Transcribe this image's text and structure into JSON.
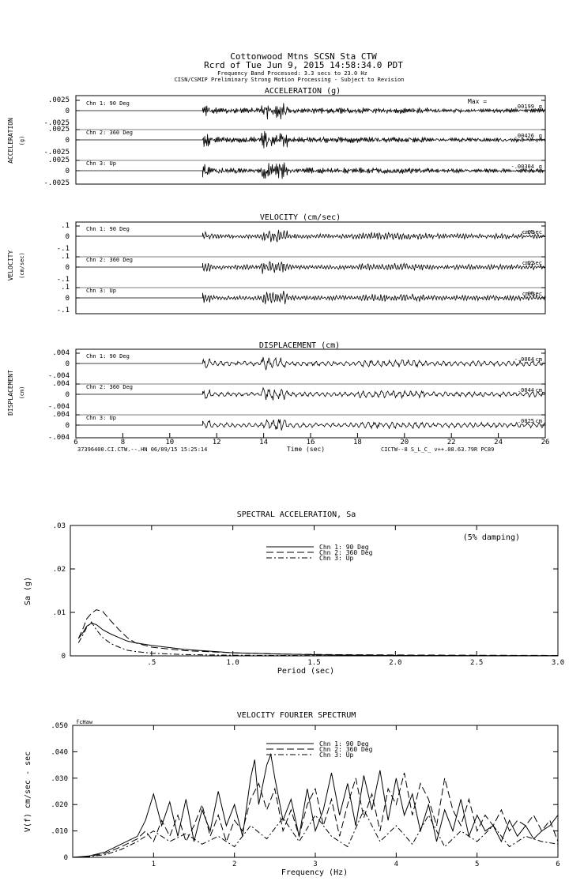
{
  "header": {
    "line1": "Cottonwood Mtns    SCSN Sta CTW",
    "line2": "Rcrd of Tue Jun  9, 2015 14:58:34.0 PDT",
    "line3": "Frequency Band Processed: 3.3 secs to 23.0 Hz",
    "line4": "CISN/CSMIP Preliminary Strong Motion Processing - Subject to Revision"
  },
  "colors": {
    "ink": "#000000",
    "paper": "#ffffff"
  },
  "chart_data": [
    {
      "type": "line",
      "title": "ACCELERATION (g)",
      "ylabel": "ACCELERATION",
      "yunit": "(g)",
      "max_prefix": "Max =",
      "ylim": [
        -0.0025,
        0.0025
      ],
      "yticks": [
        ".0025",
        "0",
        "-.0025"
      ],
      "series": [
        {
          "name": "Chn 1: 90 Deg",
          "max": ".00199",
          "unit": "g"
        },
        {
          "name": "Chn 2: 360 Deg",
          "max": ".00426",
          "unit": "g"
        },
        {
          "name": "Chn 3: Up",
          "max": "-.00304",
          "unit": "g"
        }
      ]
    },
    {
      "type": "line",
      "title": "VELOCITY (cm/sec)",
      "ylabel": "VELOCITY",
      "yunit": "(cm/sec)",
      "ylim": [
        -0.1,
        0.1
      ],
      "yticks": [
        ".1",
        "0",
        "-.1"
      ],
      "series": [
        {
          "name": "Chn 1: 90 Deg",
          "max": "-.08",
          "unit": "cm/sec"
        },
        {
          "name": "Chn 2: 360 Deg",
          "max": ".12",
          "unit": "cm/sec"
        },
        {
          "name": "Chn 3: Up",
          "max": ".06",
          "unit": "cm/sec"
        }
      ]
    },
    {
      "type": "line",
      "title": "DISPLACEMENT (cm)",
      "ylabel": "DISPLACEMENT",
      "yunit": "(cm)",
      "ylim": [
        -0.004,
        0.004
      ],
      "yticks": [
        ".004",
        "0",
        "-.004"
      ],
      "xlabel": "Time (sec)",
      "xlim": [
        6,
        26
      ],
      "xticks": [
        "6",
        "8",
        "10",
        "12",
        "14",
        "16",
        "18",
        "20",
        "22",
        "24",
        "26"
      ],
      "footer_left": "37396400.CI.CTW.--.HN 06/09/15 15:25:14",
      "footer_right": "CICTW--8  S_L_C_  v++.08.63.79R PC89",
      "series": [
        {
          "name": "Chn 1: 90 Deg",
          "max": "-.0064",
          "unit": "cm"
        },
        {
          "name": "Chn 2: 360 Deg",
          "max": ".0044",
          "unit": "cm"
        },
        {
          "name": "Chn 3: Up",
          "max": ".0025",
          "unit": "cm"
        }
      ]
    },
    {
      "type": "line",
      "title": "SPECTRAL ACCELERATION, Sa",
      "ylabel": "Sa (g)",
      "xlabel": "Period (sec)",
      "note": "(5% damping)",
      "xlim": [
        0,
        3
      ],
      "ylim": [
        0,
        0.03
      ],
      "xticks": [
        {
          "v": 0.5,
          "label": ".5"
        },
        {
          "v": 1.0,
          "label": "1.0"
        },
        {
          "v": 1.5,
          "label": "1.5"
        },
        {
          "v": 2.0,
          "label": "2.0"
        },
        {
          "v": 2.5,
          "label": "2.5"
        },
        {
          "v": 3.0,
          "label": "3.0"
        }
      ],
      "yticks": [
        {
          "v": 0,
          "label": "0"
        },
        {
          "v": 0.01,
          "label": ".01"
        },
        {
          "v": 0.02,
          "label": ".02"
        },
        {
          "v": 0.03,
          "label": ".03"
        }
      ],
      "series": [
        {
          "name": "Chn 1: 90 Deg",
          "dash": "",
          "x": [
            0.05,
            0.08,
            0.1,
            0.13,
            0.16,
            0.2,
            0.25,
            0.3,
            0.35,
            0.4,
            0.5,
            0.7,
            1.0,
            1.3,
            1.6,
            2.0,
            3.0
          ],
          "y": [
            0.004,
            0.0055,
            0.0068,
            0.0075,
            0.0072,
            0.006,
            0.005,
            0.0042,
            0.0034,
            0.003,
            0.0024,
            0.0015,
            0.0007,
            0.0004,
            0.0002,
            0.0001,
            4e-05
          ]
        },
        {
          "name": "Chn 2: 360 Deg",
          "dash": "9,4",
          "x": [
            0.05,
            0.08,
            0.1,
            0.13,
            0.16,
            0.2,
            0.25,
            0.3,
            0.35,
            0.4,
            0.5,
            0.7,
            1.0,
            1.3,
            1.6,
            2.0,
            3.0
          ],
          "y": [
            0.004,
            0.0065,
            0.0085,
            0.0098,
            0.0106,
            0.0102,
            0.008,
            0.006,
            0.0042,
            0.003,
            0.002,
            0.0012,
            0.0007,
            0.0004,
            0.0003,
            0.0002,
            0.0001
          ]
        },
        {
          "name": "Chn 3: Up",
          "dash": "7,3,2,3",
          "x": [
            0.05,
            0.08,
            0.1,
            0.13,
            0.16,
            0.2,
            0.25,
            0.3,
            0.35,
            0.4,
            0.5,
            0.7,
            1.0,
            1.3,
            1.6,
            2.0,
            3.0
          ],
          "y": [
            0.003,
            0.005,
            0.0065,
            0.0078,
            0.006,
            0.0042,
            0.0028,
            0.002,
            0.0013,
            0.001,
            0.0006,
            0.0003,
            0.00015,
            0.0001,
            5e-05,
            3e-05,
            1e-05
          ]
        }
      ]
    },
    {
      "type": "line",
      "title": "VELOCITY FOURIER SPECTRUM",
      "ylabel": "V(f)  cm/sec - sec",
      "xlabel": "Frequency (Hz)",
      "tag": "fcHaw",
      "xlim": [
        0,
        6
      ],
      "ylim": [
        0,
        0.05
      ],
      "xticks": [
        {
          "v": 1,
          "label": "1"
        },
        {
          "v": 2,
          "label": "2"
        },
        {
          "v": 3,
          "label": "3"
        },
        {
          "v": 4,
          "label": "4"
        },
        {
          "v": 5,
          "label": "5"
        },
        {
          "v": 6,
          "label": "6"
        }
      ],
      "yticks": [
        {
          "v": 0,
          "label": "0"
        },
        {
          "v": 0.01,
          "label": ".010"
        },
        {
          "v": 0.02,
          "label": ".020"
        },
        {
          "v": 0.03,
          "label": ".030"
        },
        {
          "v": 0.04,
          "label": ".040"
        },
        {
          "v": 0.05,
          "label": ".050"
        }
      ],
      "series": [
        {
          "name": "Chn 1: 90 Deg",
          "dash": "",
          "x": [
            0,
            0.2,
            0.4,
            0.6,
            0.8,
            0.9,
            1.0,
            1.1,
            1.2,
            1.3,
            1.4,
            1.5,
            1.6,
            1.7,
            1.8,
            1.9,
            2.0,
            2.1,
            2.2,
            2.25,
            2.3,
            2.4,
            2.45,
            2.5,
            2.6,
            2.7,
            2.8,
            2.9,
            3.0,
            3.1,
            3.2,
            3.3,
            3.4,
            3.5,
            3.6,
            3.7,
            3.8,
            3.9,
            4.0,
            4.1,
            4.2,
            4.3,
            4.4,
            4.5,
            4.6,
            4.7,
            4.8,
            4.9,
            5.0,
            5.1,
            5.2,
            5.3,
            5.4,
            5.5,
            5.6,
            5.7,
            5.8,
            5.9,
            6.0
          ],
          "y": [
            0,
            0.0005,
            0.002,
            0.005,
            0.008,
            0.014,
            0.024,
            0.012,
            0.021,
            0.008,
            0.022,
            0.006,
            0.018,
            0.01,
            0.025,
            0.012,
            0.02,
            0.008,
            0.03,
            0.037,
            0.02,
            0.035,
            0.039,
            0.03,
            0.014,
            0.022,
            0.008,
            0.026,
            0.01,
            0.018,
            0.032,
            0.016,
            0.028,
            0.012,
            0.031,
            0.018,
            0.033,
            0.014,
            0.03,
            0.016,
            0.024,
            0.01,
            0.02,
            0.006,
            0.018,
            0.01,
            0.022,
            0.008,
            0.016,
            0.01,
            0.012,
            0.006,
            0.014,
            0.008,
            0.012,
            0.007,
            0.01,
            0.012,
            0.016
          ]
        },
        {
          "name": "Chn 2: 360 Deg",
          "dash": "9,4",
          "x": [
            0,
            0.2,
            0.4,
            0.6,
            0.8,
            0.9,
            1.0,
            1.1,
            1.2,
            1.3,
            1.4,
            1.5,
            1.6,
            1.7,
            1.8,
            1.9,
            2.0,
            2.1,
            2.2,
            2.3,
            2.4,
            2.5,
            2.6,
            2.7,
            2.8,
            2.9,
            3.0,
            3.1,
            3.2,
            3.3,
            3.4,
            3.5,
            3.6,
            3.7,
            3.8,
            3.9,
            4.0,
            4.1,
            4.2,
            4.3,
            4.4,
            4.5,
            4.6,
            4.7,
            4.8,
            4.9,
            5.0,
            5.1,
            5.2,
            5.3,
            5.4,
            5.5,
            5.6,
            5.7,
            5.8,
            5.9,
            6.0
          ],
          "y": [
            0,
            0.0004,
            0.0015,
            0.004,
            0.007,
            0.01,
            0.006,
            0.014,
            0.008,
            0.016,
            0.006,
            0.012,
            0.02,
            0.008,
            0.016,
            0.006,
            0.014,
            0.01,
            0.022,
            0.028,
            0.018,
            0.026,
            0.01,
            0.018,
            0.008,
            0.02,
            0.026,
            0.012,
            0.022,
            0.008,
            0.02,
            0.03,
            0.015,
            0.024,
            0.01,
            0.026,
            0.02,
            0.032,
            0.016,
            0.028,
            0.022,
            0.012,
            0.03,
            0.018,
            0.012,
            0.022,
            0.01,
            0.016,
            0.012,
            0.018,
            0.01,
            0.014,
            0.012,
            0.016,
            0.01,
            0.014,
            0.006
          ]
        },
        {
          "name": "Chn 3: Up",
          "dash": "7,3,2,3",
          "x": [
            0,
            0.2,
            0.4,
            0.6,
            0.8,
            1.0,
            1.2,
            1.4,
            1.6,
            1.8,
            2.0,
            2.2,
            2.4,
            2.6,
            2.8,
            3.0,
            3.2,
            3.4,
            3.6,
            3.8,
            4.0,
            4.2,
            4.4,
            4.6,
            4.8,
            5.0,
            5.2,
            5.4,
            5.6,
            5.8,
            6.0
          ],
          "y": [
            0,
            0.0003,
            0.001,
            0.003,
            0.006,
            0.01,
            0.006,
            0.009,
            0.005,
            0.008,
            0.004,
            0.012,
            0.007,
            0.015,
            0.006,
            0.016,
            0.008,
            0.004,
            0.018,
            0.006,
            0.012,
            0.005,
            0.016,
            0.004,
            0.01,
            0.006,
            0.012,
            0.004,
            0.008,
            0.006,
            0.005
          ]
        }
      ]
    }
  ]
}
